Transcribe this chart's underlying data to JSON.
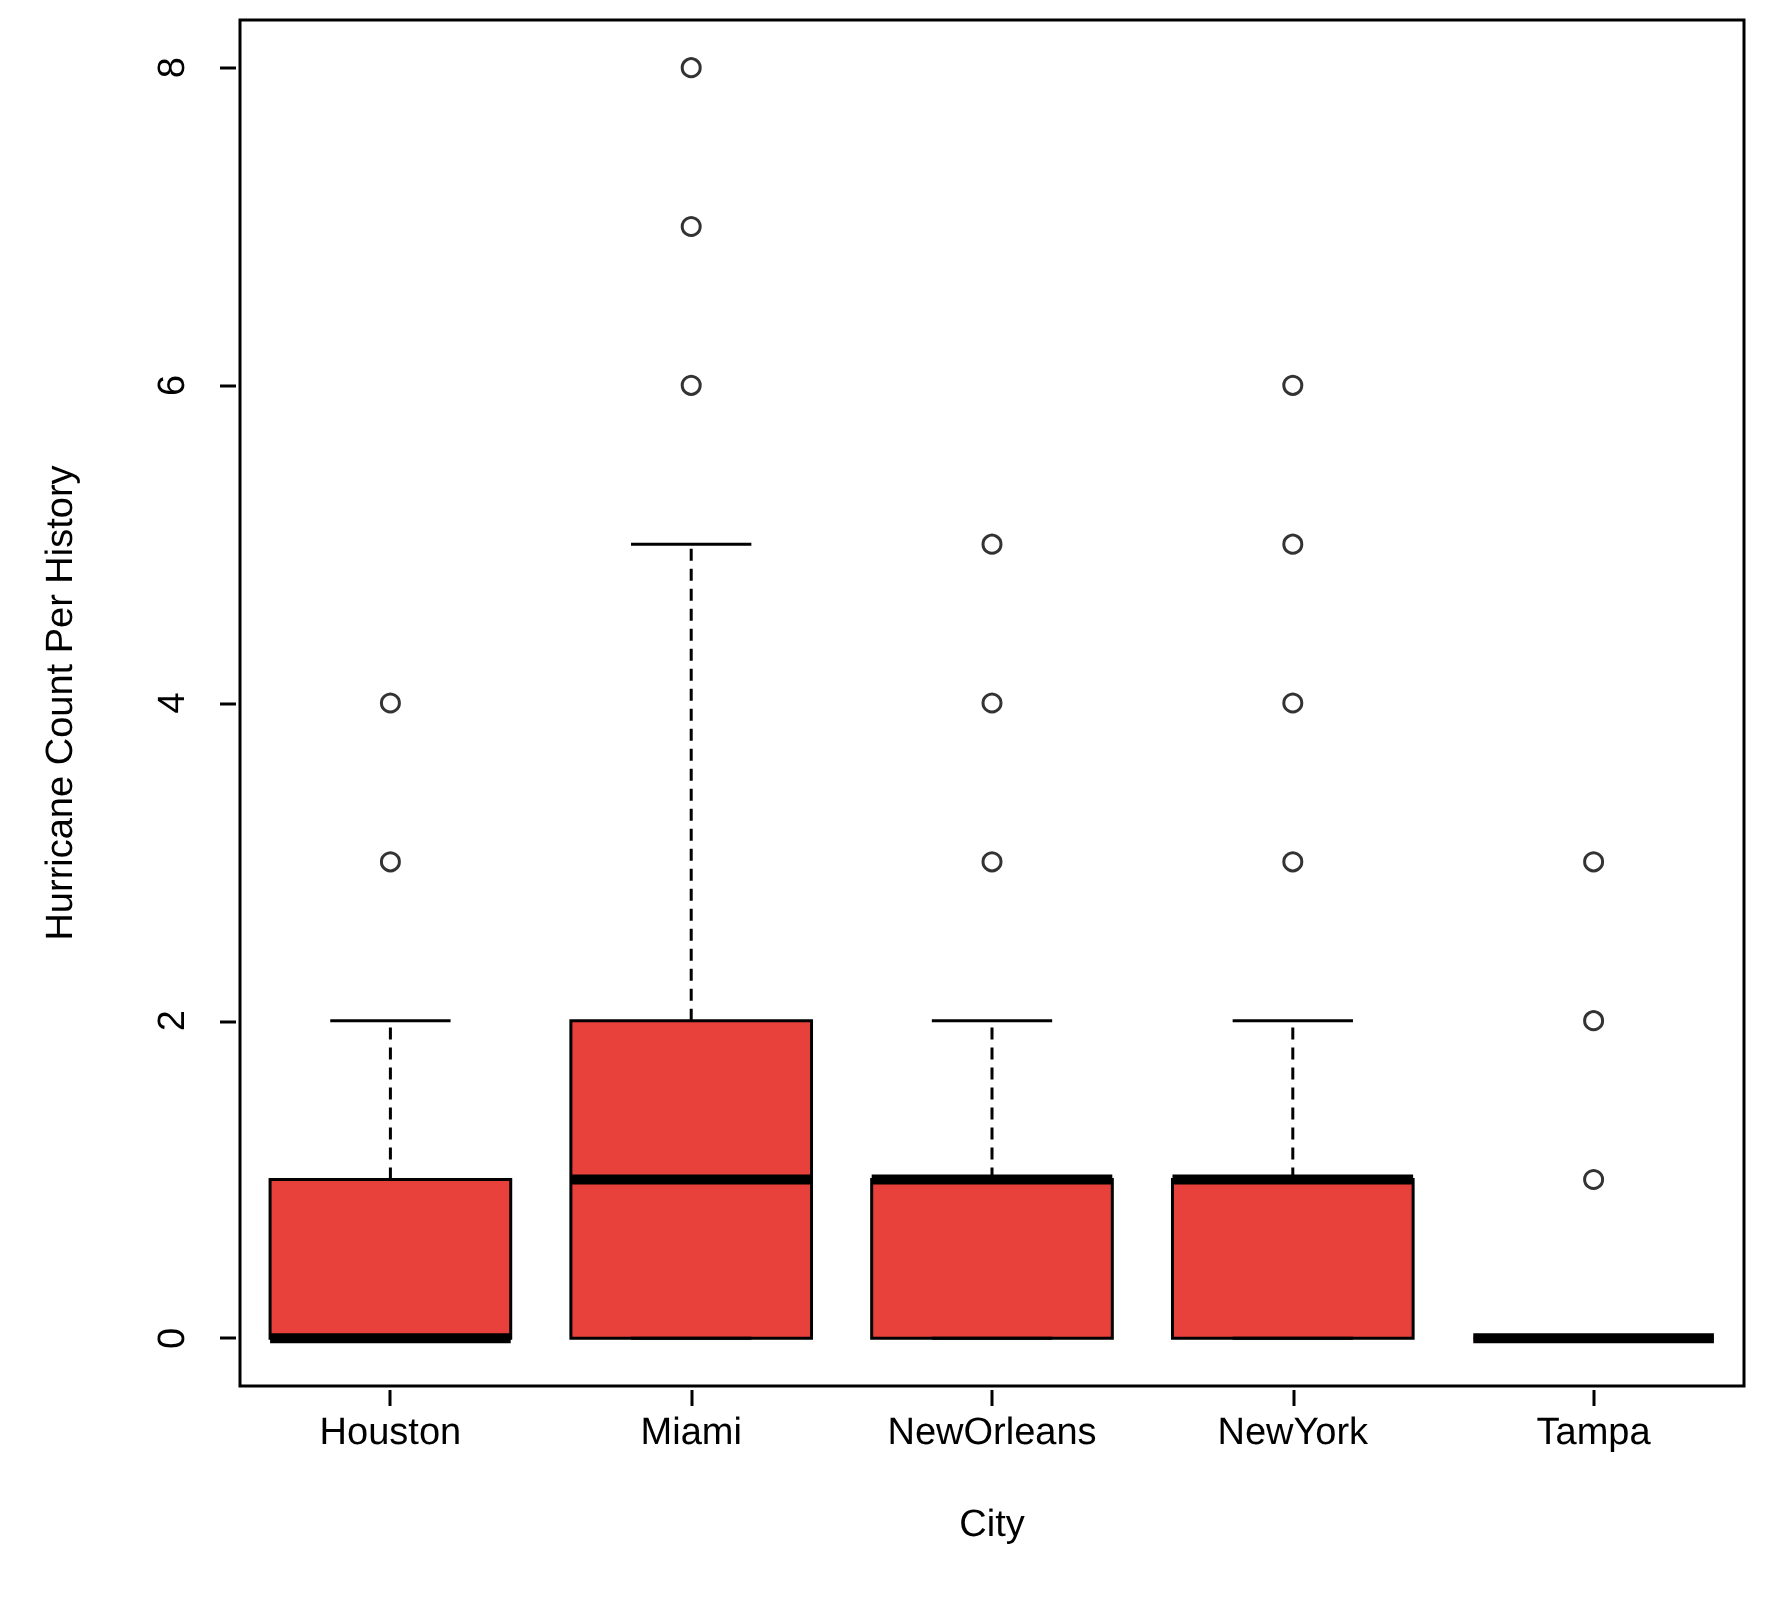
{
  "chart_data": {
    "type": "box",
    "xlabel": "City",
    "ylabel": "Hurricane Count Per History",
    "categories": [
      "Houston",
      "Miami",
      "NewOrleans",
      "NewYork",
      "Tampa"
    ],
    "color": "#e8403a",
    "marker": "circle",
    "boxes": [
      {
        "low": 0,
        "q1": 0,
        "median": 0,
        "q3": 1,
        "high": 2,
        "outliers": [
          3,
          4
        ]
      },
      {
        "low": 0,
        "q1": 0,
        "median": 1,
        "q3": 2,
        "high": 5,
        "outliers": [
          6,
          7,
          8
        ]
      },
      {
        "low": 0,
        "q1": 0,
        "median": 1,
        "q3": 1,
        "high": 2,
        "outliers": [
          3,
          4,
          5
        ]
      },
      {
        "low": 0,
        "q1": 0,
        "median": 1,
        "q3": 1,
        "high": 2,
        "outliers": [
          3,
          4,
          5,
          6
        ]
      },
      {
        "low": 0,
        "q1": 0,
        "median": 0,
        "q3": 0,
        "high": 0,
        "outliers": [
          1,
          2,
          3
        ]
      }
    ],
    "ylim": [
      -0.3,
      8.3
    ],
    "yticks": [
      0,
      2,
      4,
      6,
      8
    ]
  }
}
